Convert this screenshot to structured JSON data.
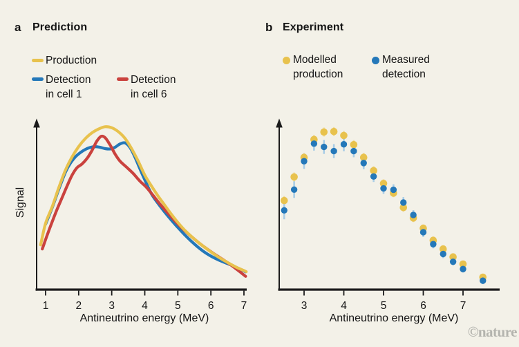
{
  "watermark": "©nature",
  "chart_data": [
    {
      "id": "prediction",
      "type": "line",
      "panel_label": "a",
      "title": "Prediction",
      "xlabel": "Antineutrino energy (MeV)",
      "ylabel": "Signal",
      "x_ticks": [
        1,
        2,
        3,
        4,
        5,
        6,
        7
      ],
      "x_range": [
        0.8,
        7.1
      ],
      "y_range": [
        0,
        1.05
      ],
      "grid": false,
      "legend_position": "top-left",
      "series": [
        {
          "name": "Production",
          "legend_lines": [
            "Production"
          ],
          "color": "#e8c24d",
          "points": [
            [
              0.85,
              0.27
            ],
            [
              1.0,
              0.4
            ],
            [
              1.2,
              0.5
            ],
            [
              1.4,
              0.615
            ],
            [
              1.6,
              0.72
            ],
            [
              1.8,
              0.8
            ],
            [
              2.0,
              0.862
            ],
            [
              2.2,
              0.91
            ],
            [
              2.4,
              0.945
            ],
            [
              2.6,
              0.968
            ],
            [
              2.8,
              0.982
            ],
            [
              3.0,
              0.976
            ],
            [
              3.2,
              0.952
            ],
            [
              3.4,
              0.912
            ],
            [
              3.6,
              0.85
            ],
            [
              3.8,
              0.775
            ],
            [
              4.0,
              0.69
            ],
            [
              4.2,
              0.625
            ],
            [
              4.4,
              0.565
            ],
            [
              4.6,
              0.51
            ],
            [
              4.8,
              0.455
            ],
            [
              5.0,
              0.405
            ],
            [
              5.2,
              0.36
            ],
            [
              5.4,
              0.322
            ],
            [
              5.6,
              0.288
            ],
            [
              5.8,
              0.257
            ],
            [
              6.0,
              0.228
            ],
            [
              6.2,
              0.2
            ],
            [
              6.4,
              0.176
            ],
            [
              6.6,
              0.153
            ],
            [
              6.8,
              0.132
            ],
            [
              7.0,
              0.115
            ],
            [
              7.07,
              0.108
            ]
          ]
        },
        {
          "name": "Detection in cell 1",
          "legend_lines": [
            "Detection",
            "in cell 1"
          ],
          "color": "#2478b9",
          "points": [
            [
              1.0,
              0.395
            ],
            [
              1.2,
              0.495
            ],
            [
              1.4,
              0.605
            ],
            [
              1.6,
              0.708
            ],
            [
              1.75,
              0.762
            ],
            [
              1.9,
              0.8
            ],
            [
              2.05,
              0.826
            ],
            [
              2.2,
              0.845
            ],
            [
              2.35,
              0.857
            ],
            [
              2.5,
              0.862
            ],
            [
              2.65,
              0.858
            ],
            [
              2.8,
              0.85
            ],
            [
              2.95,
              0.848
            ],
            [
              3.1,
              0.858
            ],
            [
              3.25,
              0.878
            ],
            [
              3.4,
              0.885
            ],
            [
              3.55,
              0.857
            ],
            [
              3.7,
              0.8
            ],
            [
              3.85,
              0.73
            ],
            [
              4.0,
              0.662
            ],
            [
              4.2,
              0.578
            ],
            [
              4.4,
              0.52
            ],
            [
              4.6,
              0.468
            ],
            [
              4.8,
              0.42
            ],
            [
              5.0,
              0.375
            ],
            [
              5.2,
              0.332
            ],
            [
              5.4,
              0.293
            ],
            [
              5.6,
              0.258
            ],
            [
              5.8,
              0.227
            ],
            [
              6.0,
              0.202
            ],
            [
              6.2,
              0.182
            ],
            [
              6.4,
              0.165
            ],
            [
              6.6,
              0.149
            ],
            [
              6.8,
              0.131
            ],
            [
              7.0,
              0.113
            ],
            [
              7.05,
              0.107
            ]
          ]
        },
        {
          "name": "Detection in cell 6",
          "legend_lines": [
            "Detection",
            "in cell 6"
          ],
          "color": "#ca423e",
          "points": [
            [
              0.9,
              0.245
            ],
            [
              1.05,
              0.33
            ],
            [
              1.2,
              0.41
            ],
            [
              1.35,
              0.485
            ],
            [
              1.5,
              0.555
            ],
            [
              1.65,
              0.625
            ],
            [
              1.8,
              0.69
            ],
            [
              1.95,
              0.735
            ],
            [
              2.1,
              0.757
            ],
            [
              2.25,
              0.79
            ],
            [
              2.4,
              0.838
            ],
            [
              2.55,
              0.895
            ],
            [
              2.68,
              0.924
            ],
            [
              2.8,
              0.916
            ],
            [
              2.95,
              0.872
            ],
            [
              3.1,
              0.818
            ],
            [
              3.25,
              0.775
            ],
            [
              3.45,
              0.738
            ],
            [
              3.65,
              0.7
            ],
            [
              3.85,
              0.655
            ],
            [
              4.05,
              0.617
            ],
            [
              4.25,
              0.568
            ],
            [
              4.45,
              0.518
            ],
            [
              4.65,
              0.472
            ],
            [
              4.85,
              0.428
            ],
            [
              5.05,
              0.386
            ],
            [
              5.25,
              0.348
            ],
            [
              5.45,
              0.313
            ],
            [
              5.65,
              0.28
            ],
            [
              5.85,
              0.25
            ],
            [
              6.05,
              0.222
            ],
            [
              6.25,
              0.196
            ],
            [
              6.45,
              0.17
            ],
            [
              6.65,
              0.142
            ],
            [
              6.85,
              0.112
            ],
            [
              7.05,
              0.08
            ]
          ]
        }
      ]
    },
    {
      "id": "experiment",
      "type": "scatter",
      "panel_label": "b",
      "title": "Experiment",
      "xlabel": "Antineutrino energy (MeV)",
      "ylabel": "",
      "x_ticks": [
        3,
        4,
        5,
        6,
        7
      ],
      "x_range": [
        2.35,
        7.9
      ],
      "y_range": [
        0,
        1.05
      ],
      "grid": false,
      "legend_position": "top",
      "series": [
        {
          "name": "Modelled production",
          "legend_lines": [
            "Modelled",
            "production"
          ],
          "color": "#e8c24d",
          "err_color": "#efdda4",
          "x": [
            2.5,
            2.75,
            3.0,
            3.25,
            3.5,
            3.75,
            4.0,
            4.25,
            4.5,
            4.75,
            5.0,
            5.25,
            5.5,
            5.75,
            6.0,
            6.25,
            6.5,
            6.75,
            7.0,
            7.5
          ],
          "y": [
            0.537,
            0.679,
            0.797,
            0.905,
            0.95,
            0.953,
            0.929,
            0.874,
            0.797,
            0.717,
            0.64,
            0.582,
            0.495,
            0.432,
            0.37,
            0.297,
            0.245,
            0.197,
            0.154,
            0.075
          ],
          "err": [
            0.027,
            0.027,
            0.027,
            0.027,
            0.027,
            0.027,
            0.027,
            0.027,
            0.027,
            0.027,
            0.025,
            0.025,
            0.025,
            0.025,
            0.023,
            0.023,
            0.022,
            0.021,
            0.02,
            0.02
          ]
        },
        {
          "name": "Measured detection",
          "legend_lines": [
            "Measured",
            "detection"
          ],
          "color": "#2478b9",
          "err_color": "#a9cde6",
          "x": [
            2.5,
            2.75,
            3.0,
            3.25,
            3.5,
            3.75,
            4.0,
            4.25,
            4.5,
            4.75,
            5.0,
            5.25,
            5.5,
            5.75,
            6.0,
            6.25,
            6.5,
            6.75,
            7.0,
            7.5
          ],
          "y": [
            0.478,
            0.603,
            0.774,
            0.88,
            0.86,
            0.835,
            0.876,
            0.835,
            0.763,
            0.682,
            0.61,
            0.602,
            0.525,
            0.45,
            0.346,
            0.274,
            0.215,
            0.168,
            0.124,
            0.054
          ],
          "err": [
            0.054,
            0.05,
            0.046,
            0.042,
            0.042,
            0.042,
            0.042,
            0.037,
            0.037,
            0.033,
            0.033,
            0.033,
            0.033,
            0.029,
            0.029,
            0.025,
            0.025,
            0.021,
            0.021,
            0.021
          ]
        }
      ]
    }
  ]
}
